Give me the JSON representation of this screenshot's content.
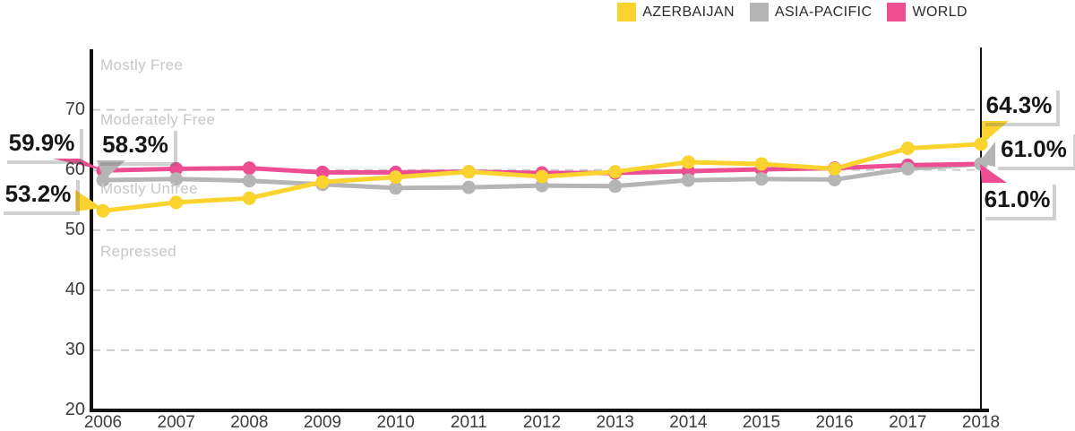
{
  "legend": {
    "items": [
      {
        "name": "azerbaijan",
        "label": "AZERBAIJAN",
        "color": "#FBD32E"
      },
      {
        "name": "asia-pacific",
        "label": "ASIA-PACIFIC",
        "color": "#B5B5B5"
      },
      {
        "name": "world",
        "label": "WORLD",
        "color": "#EC4E91"
      }
    ]
  },
  "zones": {
    "mostly_free": "Mostly Free",
    "moderately_free": "Moderately Free",
    "mostly_unfree": "Mostly Unfree",
    "repressed": "Repressed"
  },
  "callouts": {
    "left_world": "59.9%",
    "left_asia": "58.3%",
    "left_azerbaijan": "53.2%",
    "right_azerbaijan": "64.3%",
    "right_asia": "61.0%",
    "right_world": "61.0%"
  },
  "chart_data": {
    "type": "line",
    "title": "",
    "categories": [
      2006,
      2007,
      2008,
      2009,
      2010,
      2011,
      2012,
      2013,
      2014,
      2015,
      2016,
      2017,
      2018
    ],
    "series": [
      {
        "name": "azerbaijan",
        "label": "AZERBAIJAN",
        "color": "#FBD32E",
        "values": [
          53.2,
          54.6,
          55.3,
          58.0,
          58.8,
          59.7,
          58.9,
          59.7,
          61.3,
          61.0,
          60.2,
          63.6,
          64.3
        ],
        "start_label": "53.2%",
        "end_label": "64.3%"
      },
      {
        "name": "asia-pacific",
        "label": "ASIA-PACIFIC",
        "color": "#B5B5B5",
        "values": [
          58.3,
          58.5,
          58.2,
          57.6,
          57.0,
          57.1,
          57.4,
          57.3,
          58.3,
          58.5,
          58.4,
          60.2,
          61.0
        ],
        "start_label": "58.3%",
        "end_label": "61.0%"
      },
      {
        "name": "world",
        "label": "WORLD",
        "color": "#EC4E91",
        "values": [
          59.9,
          60.2,
          60.3,
          59.6,
          59.6,
          59.7,
          59.5,
          59.5,
          59.8,
          60.1,
          60.3,
          60.8,
          61.0
        ],
        "start_label": "59.9%",
        "end_label": "61.0%"
      }
    ],
    "yticks": [
      20,
      30,
      40,
      50,
      60,
      70
    ],
    "ylim": [
      20,
      80
    ],
    "grid": "dashed horizontal lines at 30-70",
    "legend_position": "top-right",
    "zone_bands": [
      "Mostly Free",
      "Moderately Free",
      "Mostly Unfree",
      "Repressed"
    ],
    "highlighted_year": 2018
  },
  "colors": {
    "axis": "#121212",
    "gridline": "#cdcdcd",
    "tick_text": "#3d3d3d",
    "zone_text": "#c7c7c7",
    "callout_text": "#161616"
  }
}
